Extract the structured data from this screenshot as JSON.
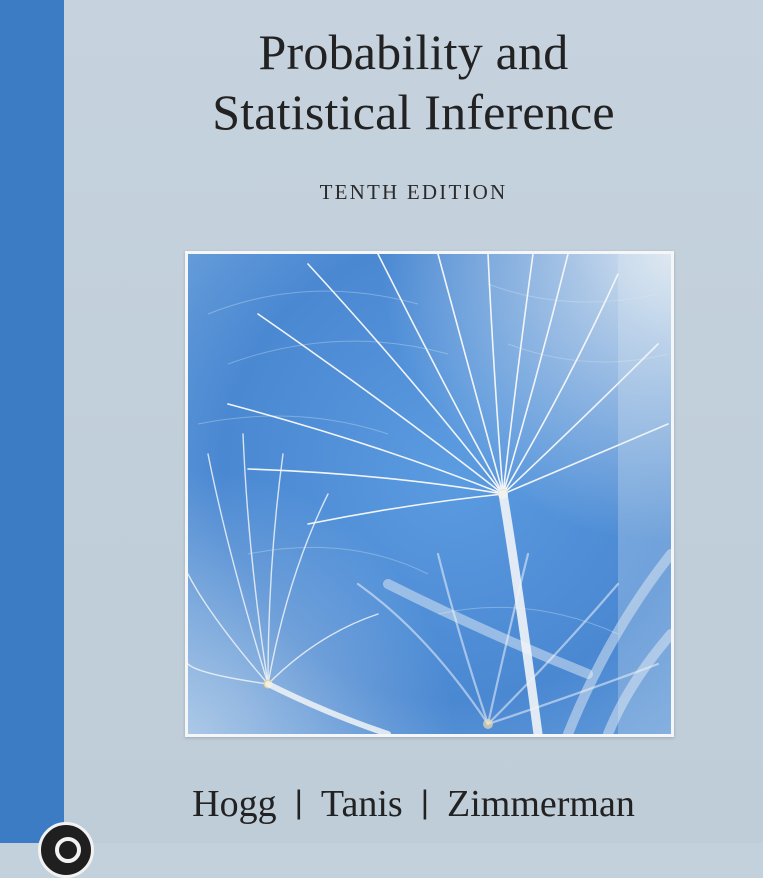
{
  "book": {
    "title_line_1": "Probability and",
    "title_line_2": "Statistical Inference",
    "edition": "TENTH EDITION",
    "authors": [
      "Hogg",
      "Tanis",
      "Zimmerman"
    ],
    "author_separator": "|"
  },
  "cover_image": {
    "subject": "dandelion seed heads against blue background",
    "icon": "dandelion-seed-photo"
  },
  "colors": {
    "background": "#c3d1dd",
    "spine_band": "#3b7cc4",
    "text": "#222222",
    "photo_blue": "#4f8fd6"
  }
}
